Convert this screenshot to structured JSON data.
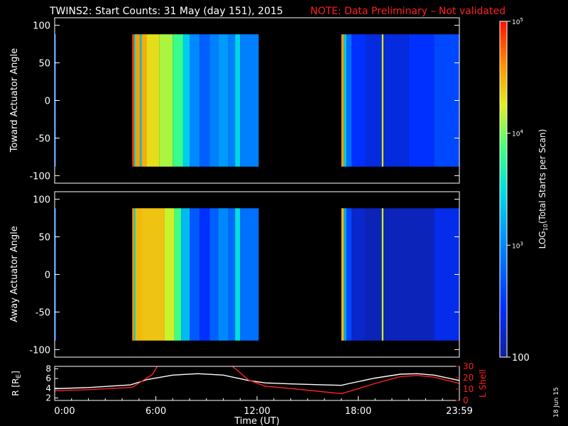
{
  "title": {
    "main": "TWINS2: Start Counts: 31 May (day 151), 2015",
    "note": "NOTE: Data Preliminary – Not validated",
    "main_color": "#ffffff",
    "note_color": "#ff2020"
  },
  "stamp": "18 Jun 15",
  "chart_data": [
    {
      "type": "heatmap",
      "ylabel": "Toward Actuator Angle",
      "ylim": [
        -110,
        110
      ],
      "yticks": [
        100,
        50,
        0,
        -50,
        -100
      ],
      "angle_range": [
        -88,
        88
      ],
      "xlim_hours": [
        0,
        24
      ],
      "data_segments_hours": [
        [
          0,
          0.08
        ],
        [
          4.6,
          12.1
        ],
        [
          17.0,
          24.0
        ]
      ],
      "columns": [
        {
          "t0": 0.0,
          "t1": 0.08,
          "log": 2.75
        },
        {
          "t0": 4.6,
          "t1": 4.72,
          "log": 4.85
        },
        {
          "t0": 4.72,
          "t1": 4.8,
          "log": 3.5
        },
        {
          "t0": 4.8,
          "t1": 5.05,
          "log": 4.55
        },
        {
          "t0": 5.05,
          "t1": 5.15,
          "log": 3.3
        },
        {
          "t0": 5.15,
          "t1": 5.45,
          "log": 4.5
        },
        {
          "t0": 5.45,
          "t1": 6.2,
          "log": 4.32
        },
        {
          "t0": 6.2,
          "t1": 7.0,
          "log": 4.12
        },
        {
          "t0": 7.0,
          "t1": 7.6,
          "log": 3.82
        },
        {
          "t0": 7.6,
          "t1": 8.0,
          "log": 3.4
        },
        {
          "t0": 8.0,
          "t1": 8.6,
          "log": 3.0
        },
        {
          "t0": 8.6,
          "t1": 9.2,
          "log": 2.75
        },
        {
          "t0": 9.2,
          "t1": 9.7,
          "log": 2.95
        },
        {
          "t0": 9.7,
          "t1": 10.3,
          "log": 3.1
        },
        {
          "t0": 10.3,
          "t1": 10.7,
          "log": 2.95
        },
        {
          "t0": 10.7,
          "t1": 11.0,
          "log": 3.45
        },
        {
          "t0": 11.0,
          "t1": 12.1,
          "log": 2.95
        },
        {
          "t0": 17.0,
          "t1": 17.15,
          "log": 4.55
        },
        {
          "t0": 17.15,
          "t1": 17.3,
          "log": 3.4
        },
        {
          "t0": 17.3,
          "t1": 17.6,
          "log": 2.85
        },
        {
          "t0": 17.6,
          "t1": 18.4,
          "log": 2.45
        },
        {
          "t0": 18.4,
          "t1": 19.4,
          "log": 2.3
        },
        {
          "t0": 19.4,
          "t1": 19.5,
          "log": 4.3
        },
        {
          "t0": 19.5,
          "t1": 21.0,
          "log": 2.3
        },
        {
          "t0": 21.0,
          "t1": 22.5,
          "log": 2.45
        },
        {
          "t0": 22.5,
          "t1": 24.0,
          "log": 2.6
        }
      ]
    },
    {
      "type": "heatmap",
      "ylabel": "Away Actuator Angle",
      "ylim": [
        -110,
        110
      ],
      "yticks": [
        100,
        50,
        0,
        -50,
        -100
      ],
      "angle_range": [
        -88,
        88
      ],
      "xlim_hours": [
        0,
        24
      ],
      "data_segments_hours": [
        [
          0,
          0.08
        ],
        [
          4.6,
          12.1
        ],
        [
          17.0,
          24.0
        ]
      ],
      "columns": [
        {
          "t0": 0.0,
          "t1": 0.08,
          "log": 2.8
        },
        {
          "t0": 4.6,
          "t1": 4.72,
          "log": 4.6
        },
        {
          "t0": 4.72,
          "t1": 4.8,
          "log": 3.5
        },
        {
          "t0": 4.8,
          "t1": 5.2,
          "log": 4.45
        },
        {
          "t0": 5.2,
          "t1": 6.5,
          "log": 4.42
        },
        {
          "t0": 6.5,
          "t1": 7.1,
          "log": 4.2
        },
        {
          "t0": 7.1,
          "t1": 7.5,
          "log": 3.85
        },
        {
          "t0": 7.5,
          "t1": 8.0,
          "log": 3.3
        },
        {
          "t0": 8.0,
          "t1": 8.6,
          "log": 2.7
        },
        {
          "t0": 8.6,
          "t1": 9.2,
          "log": 2.45
        },
        {
          "t0": 9.2,
          "t1": 9.7,
          "log": 2.75
        },
        {
          "t0": 9.7,
          "t1": 10.3,
          "log": 3.0
        },
        {
          "t0": 10.3,
          "t1": 10.7,
          "log": 2.8
        },
        {
          "t0": 10.7,
          "t1": 11.0,
          "log": 3.5
        },
        {
          "t0": 11.0,
          "t1": 12.1,
          "log": 2.85
        },
        {
          "t0": 17.0,
          "t1": 17.15,
          "log": 4.45
        },
        {
          "t0": 17.15,
          "t1": 17.3,
          "log": 3.2
        },
        {
          "t0": 17.3,
          "t1": 17.6,
          "log": 2.6
        },
        {
          "t0": 17.6,
          "t1": 18.4,
          "log": 2.2
        },
        {
          "t0": 18.4,
          "t1": 19.4,
          "log": 2.1
        },
        {
          "t0": 19.4,
          "t1": 19.5,
          "log": 4.2
        },
        {
          "t0": 19.5,
          "t1": 22.5,
          "log": 2.12
        },
        {
          "t0": 22.5,
          "t1": 24.0,
          "log": 2.35
        }
      ]
    },
    {
      "type": "line",
      "xlabel": "Time (UT)",
      "xlim_hours": [
        0,
        24
      ],
      "x_tick_labels": [
        "0:00",
        "6:00",
        "12:00",
        "18:00",
        "23:59"
      ],
      "x_tick_hours": [
        0,
        6,
        12,
        18,
        24
      ],
      "left_axis": {
        "label": "R [R",
        "label_sub": "E",
        "label_tail": "]",
        "ylim": [
          1.5,
          8.5
        ],
        "yticks": [
          8,
          6,
          4,
          2
        ],
        "color": "#ffffff"
      },
      "right_axis": {
        "label": "L Shell",
        "ylim": [
          0,
          30
        ],
        "yticks": [
          30,
          20,
          10,
          0
        ],
        "tick_labels": [
          "30",
          "20",
          "10",
          "0"
        ],
        "color": "#ff2020"
      },
      "series": [
        {
          "axis": "left",
          "color": "#ffffff",
          "points": [
            [
              0,
              3.9
            ],
            [
              2,
              4.15
            ],
            [
              4.5,
              4.7
            ],
            [
              5.5,
              5.8
            ],
            [
              7,
              6.7
            ],
            [
              8.5,
              7.0
            ],
            [
              10,
              6.7
            ],
            [
              11.5,
              5.6
            ],
            [
              12.5,
              5.1
            ],
            [
              14,
              4.9
            ],
            [
              16,
              4.7
            ],
            [
              17.0,
              4.6
            ],
            [
              17.5,
              5.0
            ],
            [
              19,
              6.1
            ],
            [
              20.5,
              6.9
            ],
            [
              21.5,
              7.0
            ],
            [
              22.5,
              6.7
            ],
            [
              24,
              5.6
            ]
          ]
        },
        {
          "axis": "right",
          "color": "#ff2020",
          "points": [
            [
              0,
              8.5
            ],
            [
              2,
              9.5
            ],
            [
              4.6,
              11.5
            ],
            [
              5.8,
              23
            ],
            [
              6.1,
              30.5
            ],
            [
              10.5,
              30.5
            ],
            [
              11.5,
              18
            ],
            [
              12.5,
              12.5
            ],
            [
              14,
              10.5
            ],
            [
              16,
              7.5
            ],
            [
              17.0,
              6
            ],
            [
              17.8,
              9.5
            ],
            [
              19,
              15
            ],
            [
              20.5,
              21
            ],
            [
              21.5,
              22
            ],
            [
              22.5,
              20.5
            ],
            [
              24,
              15
            ]
          ]
        }
      ]
    }
  ],
  "colorbar": {
    "label_pre": "LOG",
    "label_sub": "10",
    "label_post": "(Total Starts per Scan)",
    "range_log": [
      2,
      5
    ],
    "ticks": [
      {
        "log": 5,
        "base": "10",
        "exp": "5"
      },
      {
        "log": 4,
        "base": "10",
        "exp": "4"
      },
      {
        "log": 3,
        "base": "10",
        "exp": "3"
      },
      {
        "log": 2,
        "plain": "100"
      }
    ]
  }
}
